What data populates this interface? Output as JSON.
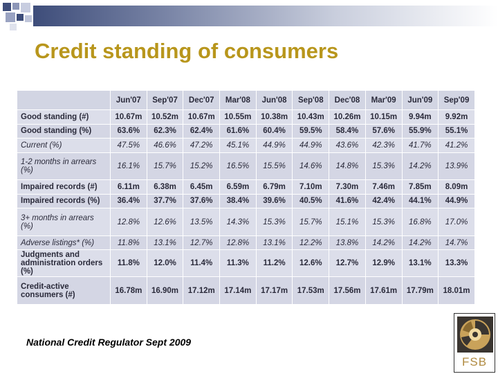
{
  "slide": {
    "title": "Credit standing of consumers",
    "footer_note": "National Credit Regulator Sept 2009",
    "logo_text": "FSB"
  },
  "colors": {
    "title": "#b8961c",
    "band_dark": "#3e4d7a",
    "table_bg": "#d7d9e6",
    "logo_brown": "#b08a40"
  },
  "table": {
    "columns": [
      "Jun'07",
      "Sep'07",
      "Dec'07",
      "Mar'08",
      "Jun'08",
      "Sep'08",
      "Dec'08",
      "Mar'09",
      "Jun'09",
      "Sep'09"
    ],
    "rows": [
      {
        "label": "Good standing (#)",
        "values": [
          "10.67m",
          "10.52m",
          "10.67m",
          "10.55m",
          "10.38m",
          "10.43m",
          "10.26m",
          "10.15m",
          "9.94m",
          "9.92m"
        ]
      },
      {
        "label": "Good standing (%)",
        "values": [
          "63.6%",
          "62.3%",
          "62.4%",
          "61.6%",
          "60.4%",
          "59.5%",
          "58.4%",
          "57.6%",
          "55.9%",
          "55.1%"
        ]
      },
      {
        "label": "Current (%)",
        "values": [
          "47.5%",
          "46.6%",
          "47.2%",
          "45.1%",
          "44.9%",
          "44.9%",
          "43.6%",
          "42.3%",
          "41.7%",
          "41.2%"
        ]
      },
      {
        "label": "1-2 months in arrears (%)",
        "values": [
          "16.1%",
          "15.7%",
          "15.2%",
          "16.5%",
          "15.5%",
          "14.6%",
          "14.8%",
          "15.3%",
          "14.2%",
          "13.9%"
        ]
      },
      {
        "label": "Impaired records (#)",
        "values": [
          "6.11m",
          "6.38m",
          "6.45m",
          "6.59m",
          "6.79m",
          "7.10m",
          "7.30m",
          "7.46m",
          "7.85m",
          "8.09m"
        ]
      },
      {
        "label": "Impaired records (%)",
        "values": [
          "36.4%",
          "37.7%",
          "37.6%",
          "38.4%",
          "39.6%",
          "40.5%",
          "41.6%",
          "42.4%",
          "44.1%",
          "44.9%"
        ]
      },
      {
        "label": "3+ months in arrears (%)",
        "values": [
          "12.8%",
          "12.6%",
          "13.5%",
          "14.3%",
          "15.3%",
          "15.7%",
          "15.1%",
          "15.3%",
          "16.8%",
          "17.0%"
        ]
      },
      {
        "label": "Adverse listings* (%)",
        "values": [
          "11.8%",
          "13.1%",
          "12.7%",
          "12.8%",
          "13.1%",
          "12.2%",
          "13.8%",
          "14.2%",
          "14.2%",
          "14.7%"
        ]
      },
      {
        "label": "Judgments and\nadministration orders (%)",
        "values": [
          "11.8%",
          "12.0%",
          "11.4%",
          "11.3%",
          "11.2%",
          "12.6%",
          "12.7%",
          "12.9%",
          "13.1%",
          "13.3%"
        ]
      },
      {
        "label": "Credit-active consumers (#)",
        "values": [
          "16.78m",
          "16.90m",
          "17.12m",
          "17.14m",
          "17.17m",
          "17.53m",
          "17.56m",
          "17.61m",
          "17.79m",
          "18.01m"
        ]
      }
    ]
  }
}
